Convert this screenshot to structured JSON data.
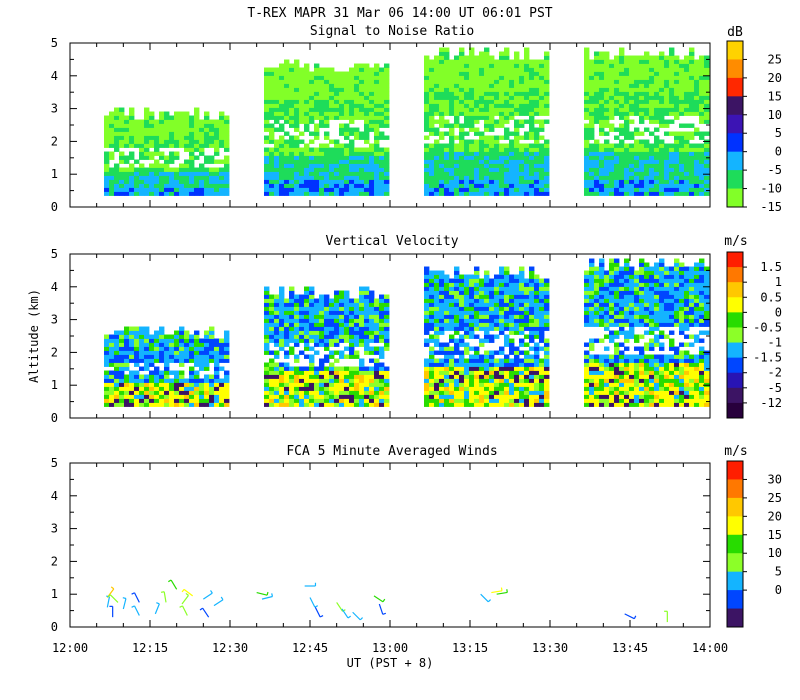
{
  "header": {
    "title": "T-REX   MAPR 31 Mar 06   14:00 UT  06:01   PST"
  },
  "chart_data": [
    {
      "type": "heatmap",
      "title": "Signal to Noise Ratio",
      "xlabel": "",
      "ylabel": "",
      "ylim": [
        0,
        5
      ],
      "yticks": [
        "0",
        "1",
        "2",
        "3",
        "4",
        "5"
      ],
      "colorbar": {
        "unit": "dB",
        "labels": [
          "25",
          "20",
          "15",
          "10",
          "5",
          "0",
          "-5",
          "-10",
          "-15"
        ],
        "colors": [
          "#ffd200",
          "#ff8c00",
          "#ff2800",
          "#3c1464",
          "#3c14b4",
          "#0032ff",
          "#14b4ff",
          "#1edc5a",
          "#82ff28"
        ]
      },
      "segments": [
        {
          "start": "12:06",
          "end": "12:30",
          "base_km": 0.35,
          "top_km": 3.1
        },
        {
          "start": "12:36",
          "end": "13:00",
          "base_km": 0.35,
          "top_km": 4.6
        },
        {
          "start": "13:06",
          "end": "13:30",
          "base_km": 0.35,
          "top_km": 4.95
        },
        {
          "start": "13:36",
          "end": "14:00",
          "base_km": 0.35,
          "top_km": 4.95
        }
      ]
    },
    {
      "type": "heatmap",
      "title": "Vertical Velocity",
      "xlabel": "",
      "ylabel": "Altitude (km)",
      "ylim": [
        0,
        5
      ],
      "yticks": [
        "0",
        "1",
        "2",
        "3",
        "4",
        "5"
      ],
      "colorbar": {
        "unit": "m/s",
        "labels": [
          "1.5",
          "1",
          "0.5",
          "0",
          "-0.5",
          "-1",
          "-1.5",
          "-2",
          "-5",
          "-12"
        ],
        "colors": [
          "#ff1e00",
          "#ff7800",
          "#ffc800",
          "#ffff00",
          "#28dc00",
          "#8cff28",
          "#14b4ff",
          "#0046ff",
          "#2814b4",
          "#3c1464",
          "#28003c"
        ]
      },
      "segments": [
        {
          "start": "12:06",
          "end": "12:30",
          "base_km": 0.35,
          "top_km": 2.9
        },
        {
          "start": "12:36",
          "end": "13:00",
          "base_km": 0.35,
          "top_km": 4.1
        },
        {
          "start": "13:06",
          "end": "13:30",
          "base_km": 0.35,
          "top_km": 4.7
        },
        {
          "start": "13:36",
          "end": "14:00",
          "base_km": 0.35,
          "top_km": 5.0
        }
      ]
    },
    {
      "type": "scatter",
      "title": "FCA 5 Minute Averaged Winds",
      "xlabel": "UT  (PST + 8)",
      "ylabel": "",
      "ylim": [
        0,
        5
      ],
      "yticks": [
        "0",
        "1",
        "2",
        "3",
        "4",
        "5"
      ],
      "xlim_minutes": [
        0,
        120
      ],
      "xticks": [
        "12:00",
        "12:15",
        "12:30",
        "12:45",
        "13:00",
        "13:15",
        "13:30",
        "13:45",
        "14:00"
      ],
      "colorbar": {
        "unit": "m/s",
        "labels": [
          "30",
          "25",
          "20",
          "15",
          "10",
          "5",
          "0"
        ],
        "colors": [
          "#ff1e00",
          "#ff7800",
          "#ffc800",
          "#ffff00",
          "#28dc00",
          "#8cff28",
          "#14b4ff",
          "#0046ff",
          "#3c1464"
        ]
      },
      "barbs": [
        {
          "t": 7,
          "alt": 0.9,
          "u": 6,
          "v": 8,
          "speed": 19
        },
        {
          "t": 7,
          "alt": 0.6,
          "u": 1,
          "v": 5,
          "speed": 5
        },
        {
          "t": 8,
          "alt": 0.3,
          "u": 0,
          "v": 3,
          "speed": 2
        },
        {
          "t": 9,
          "alt": 0.75,
          "u": -3,
          "v": 3,
          "speed": 9
        },
        {
          "t": 10,
          "alt": 0.55,
          "u": 1,
          "v": 4,
          "speed": 4
        },
        {
          "t": 13,
          "alt": 0.35,
          "u": -2,
          "v": 4,
          "speed": 4
        },
        {
          "t": 13,
          "alt": 0.75,
          "u": -2,
          "v": 4,
          "speed": 3
        },
        {
          "t": 16,
          "alt": 0.4,
          "u": 2,
          "v": 5,
          "speed": 5
        },
        {
          "t": 18,
          "alt": 0.75,
          "u": -1,
          "v": 6,
          "speed": 8
        },
        {
          "t": 20,
          "alt": 1.15,
          "u": -3,
          "v": 5,
          "speed": 14
        },
        {
          "t": 21,
          "alt": 0.7,
          "u": 3,
          "v": 4,
          "speed": 11
        },
        {
          "t": 22,
          "alt": 0.35,
          "u": -2,
          "v": 4,
          "speed": 10
        },
        {
          "t": 23,
          "alt": 0.95,
          "u": -4,
          "v": 3,
          "speed": 16
        },
        {
          "t": 25,
          "alt": 0.85,
          "u": 3,
          "v": 2,
          "speed": 5
        },
        {
          "t": 26,
          "alt": 0.3,
          "u": -2,
          "v": 3,
          "speed": 2
        },
        {
          "t": 27,
          "alt": 0.65,
          "u": 3,
          "v": 2,
          "speed": 6
        },
        {
          "t": 35,
          "alt": 1.05,
          "u": 4,
          "v": -1,
          "speed": 15
        },
        {
          "t": 36,
          "alt": 0.85,
          "u": 4,
          "v": 1,
          "speed": 4
        },
        {
          "t": 44,
          "alt": 1.25,
          "u": 4,
          "v": 0,
          "speed": 7
        },
        {
          "t": 45,
          "alt": 0.9,
          "u": 2,
          "v": -4,
          "speed": 6
        },
        {
          "t": 46,
          "alt": 0.6,
          "u": 2,
          "v": -4,
          "speed": 3
        },
        {
          "t": 50,
          "alt": 0.75,
          "u": 2,
          "v": -3,
          "speed": 9
        },
        {
          "t": 51,
          "alt": 0.55,
          "u": 2,
          "v": -3,
          "speed": 7
        },
        {
          "t": 53,
          "alt": 0.45,
          "u": 2,
          "v": -2,
          "speed": 6
        },
        {
          "t": 57,
          "alt": 0.95,
          "u": 3,
          "v": -2,
          "speed": 14
        },
        {
          "t": 58,
          "alt": 0.7,
          "u": 1,
          "v": -3,
          "speed": 3
        },
        {
          "t": 77,
          "alt": 1.0,
          "u": 3,
          "v": -3,
          "speed": 5
        },
        {
          "t": 79,
          "alt": 1.05,
          "u": 6,
          "v": 1,
          "speed": 18
        },
        {
          "t": 80,
          "alt": 1.0,
          "u": 6,
          "v": 1,
          "speed": 14
        },
        {
          "t": 104,
          "alt": 0.4,
          "u": 4,
          "v": -2,
          "speed": 3
        },
        {
          "t": 112,
          "alt": 0.15,
          "u": 0,
          "v": 5,
          "speed": 9
        }
      ]
    }
  ]
}
